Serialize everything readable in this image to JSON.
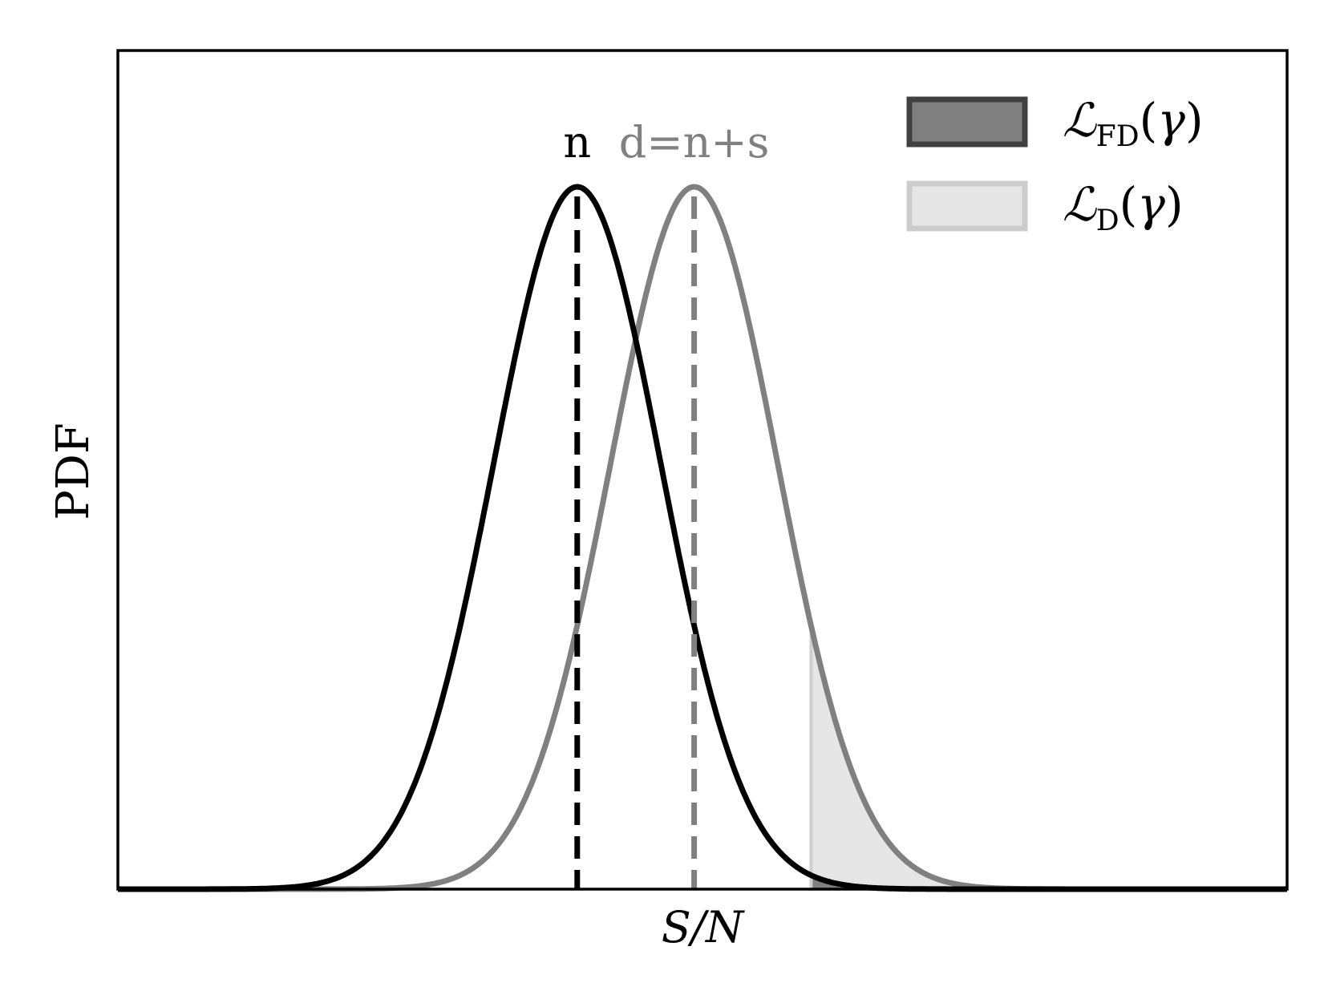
{
  "chart_data": {
    "type": "line",
    "title": "",
    "xlabel": "S/N",
    "ylabel": "PDF",
    "xlim": [
      -5.5,
      8.5
    ],
    "ylim": [
      0,
      1.0
    ],
    "grid": false,
    "x_ticks_shown": false,
    "y_ticks_shown": false,
    "legend_placement": "top-right",
    "series": [
      {
        "key": "noise",
        "mean": 0.0,
        "sigma": 1.0,
        "peak": 1.0,
        "color": "#000000",
        "dashed_mean_line": true
      },
      {
        "key": "data",
        "mean": 1.4,
        "sigma": 1.0,
        "peak": 1.0,
        "color": "#808080",
        "dashed_mean_line": true
      }
    ],
    "threshold_gamma": 2.8,
    "shaded_regions": [
      {
        "key": "L_FD",
        "under": "noise",
        "from": 2.8,
        "color": "#808080",
        "opacity": 1.0
      },
      {
        "key": "L_D",
        "under": "data",
        "from": 2.8,
        "color": "#e6e6e6",
        "opacity": 1.0
      }
    ],
    "annotations": [
      {
        "text": "n",
        "x": 0.0,
        "color": "#000000"
      },
      {
        "text": "d=n+s",
        "x": 1.4,
        "color": "#808080"
      }
    ],
    "legend": [
      {
        "key": "L_FD",
        "script": "FD",
        "arg": "γ",
        "fill": "#808080",
        "border": "#404040"
      },
      {
        "key": "L_D",
        "script": "D",
        "arg": "γ",
        "fill": "#e6e6e6",
        "border": "#cccccc"
      }
    ]
  },
  "legend_symbol": "ℒ"
}
